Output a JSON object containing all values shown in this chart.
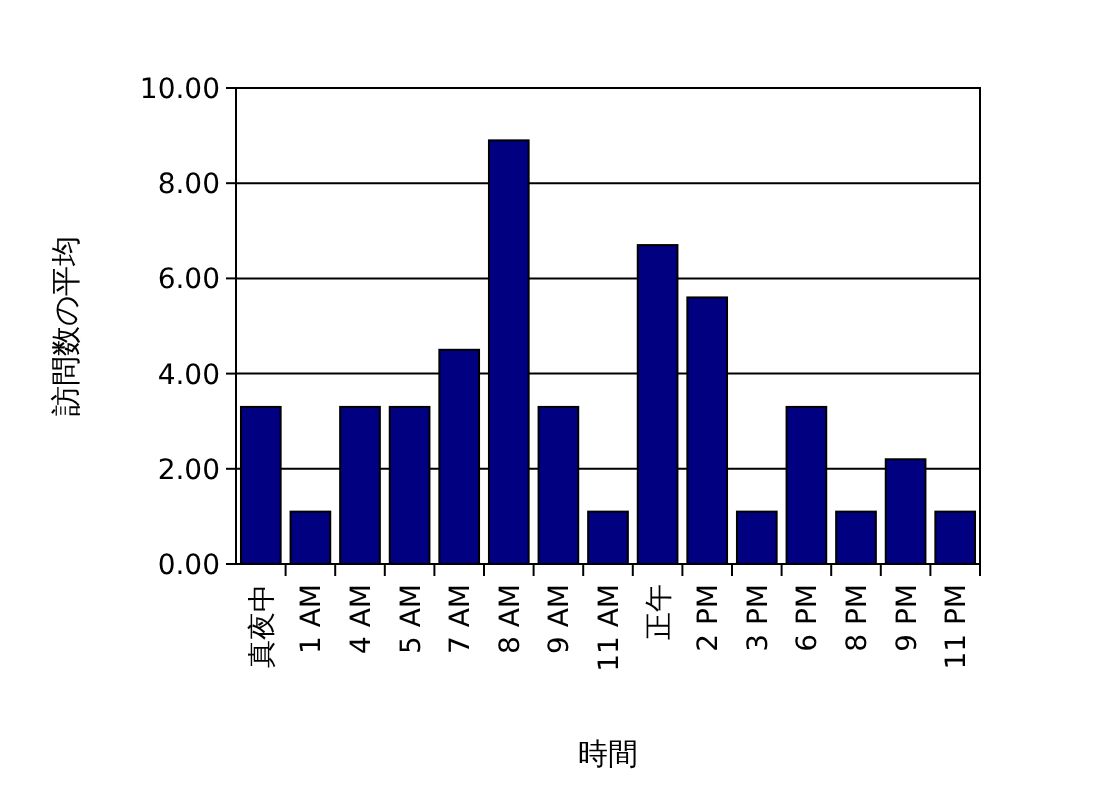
{
  "chart_data": {
    "type": "bar",
    "xlabel": "時間",
    "ylabel": "訪問数の平均",
    "categories": [
      "真夜中",
      "1 AM",
      "4 AM",
      "5 AM",
      "7 AM",
      "8 AM",
      "9 AM",
      "11 AM",
      "正午",
      "2 PM",
      "3 PM",
      "6 PM",
      "8 PM",
      "9 PM",
      "11 PM"
    ],
    "values": [
      3.3,
      1.1,
      3.3,
      3.3,
      4.5,
      8.9,
      3.3,
      1.1,
      6.7,
      5.6,
      1.1,
      3.3,
      1.1,
      2.2,
      1.1
    ],
    "color": "#000080",
    "ylim": [
      0,
      10
    ],
    "yticks": [
      {
        "value": 0,
        "label": "0.00"
      },
      {
        "value": 2,
        "label": "2.00"
      },
      {
        "value": 4,
        "label": "4.00"
      },
      {
        "value": 6,
        "label": "6.00"
      },
      {
        "value": 8,
        "label": "8.00"
      },
      {
        "value": 10,
        "label": "10.00"
      }
    ],
    "grid": "y"
  }
}
